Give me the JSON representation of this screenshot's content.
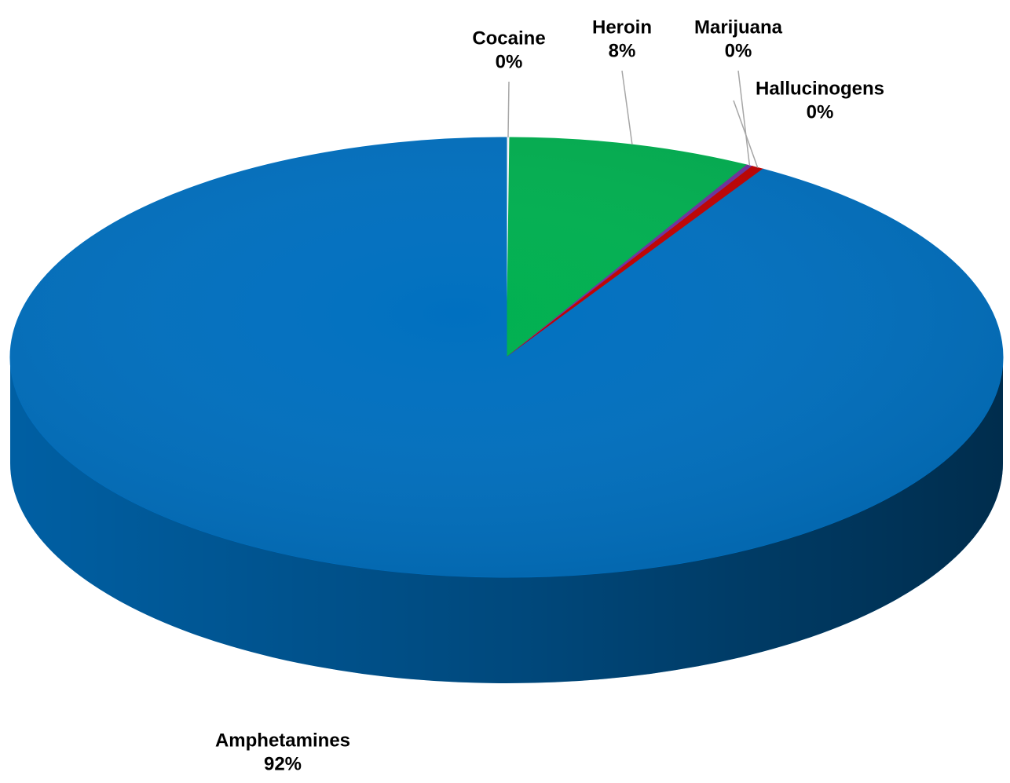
{
  "chart_data": {
    "type": "pie3d",
    "categories": [
      "Cocaine",
      "Heroin",
      "Marijuana",
      "Hallucinogens",
      "Amphetamines"
    ],
    "values": [
      0.1,
      8,
      0.2,
      0.4,
      92
    ],
    "value_labels": [
      "0%",
      "8%",
      "0%",
      "0%",
      "92%"
    ],
    "colors": [
      "#ffffff",
      "#00b050",
      "#7030a0",
      "#c00000",
      "#0070c0"
    ]
  }
}
